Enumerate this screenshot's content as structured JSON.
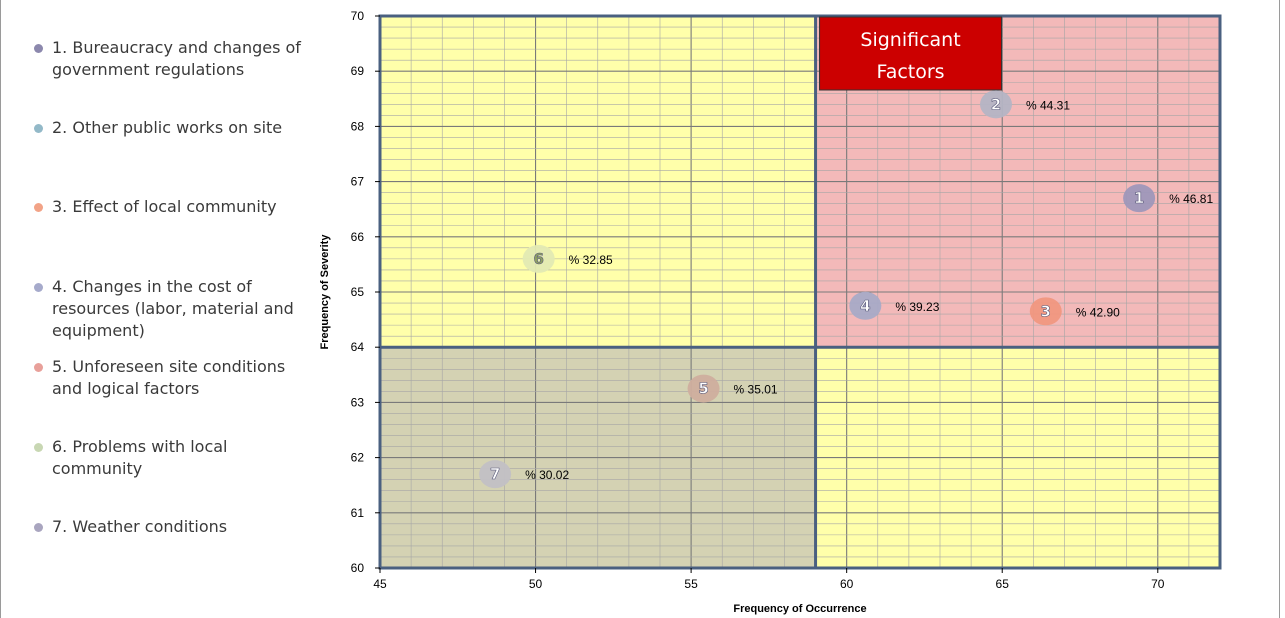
{
  "legend": [
    {
      "text": "1. Bureaucracy and changes of government regulations",
      "color": "#8c88ad"
    },
    {
      "text": "2. Other public works on site",
      "color": "#93b9c8"
    },
    {
      "text": "3. Effect of local community",
      "color": "#f2a387"
    },
    {
      "text": "4. Changes in the cost of resources (labor, material and equipment)",
      "color": "#a6aacb"
    },
    {
      "text": "5. Unforeseen site conditions and logical factors",
      "color": "#e8a09a"
    },
    {
      "text": "6. Problems with local community",
      "color": "#c8d7b3"
    },
    {
      "text": "7. Weather conditions",
      "color": "#a9a5bf"
    }
  ],
  "significant_label": [
    "Significant",
    "Factors"
  ],
  "colors": {
    "upper_left": "#ffffaa",
    "upper_right": "#f3b9b9",
    "lower_left": "#d4d2b3",
    "lower_right": "#ffffaa",
    "border": "#4a6080",
    "significant_box": "#cc0000"
  },
  "chart_data": {
    "type": "scatter",
    "xlabel": "Frequency of Occurrence",
    "ylabel": "Frequency of Severity",
    "xlim": [
      45,
      72
    ],
    "ylim": [
      60,
      70
    ],
    "xticks": [
      45,
      50,
      55,
      60,
      65,
      70
    ],
    "yticks": [
      60,
      61,
      62,
      63,
      64,
      65,
      66,
      67,
      68,
      69,
      70
    ],
    "quadrant_split": {
      "x": 59,
      "y": 64
    },
    "grid": true,
    "points": [
      {
        "id": "1",
        "x": 69.4,
        "y": 66.7,
        "label": "% 46.81",
        "color": "#9e97b9",
        "text_color": "#ffffff"
      },
      {
        "id": "2",
        "x": 64.8,
        "y": 68.4,
        "label": "% 44.31",
        "color": "#b4b4c4",
        "text_color": "#ffffff"
      },
      {
        "id": "3",
        "x": 66.4,
        "y": 64.65,
        "label": "% 42.90",
        "color": "#f0977f",
        "text_color": "#ffffff"
      },
      {
        "id": "4",
        "x": 60.6,
        "y": 64.75,
        "label": "% 39.23",
        "color": "#a8aac6",
        "text_color": "#ffffff"
      },
      {
        "id": "5",
        "x": 55.4,
        "y": 63.25,
        "label": "% 35.01",
        "color": "#cfae9e",
        "text_color": "#ffffff"
      },
      {
        "id": "6",
        "x": 50.1,
        "y": 65.6,
        "label": "% 32.85",
        "color": "#e3eab3",
        "text_color": "#8ea062"
      },
      {
        "id": "7",
        "x": 48.7,
        "y": 61.7,
        "label": "% 30.02",
        "color": "#c2c0c5",
        "text_color": "#ffffff"
      }
    ]
  }
}
